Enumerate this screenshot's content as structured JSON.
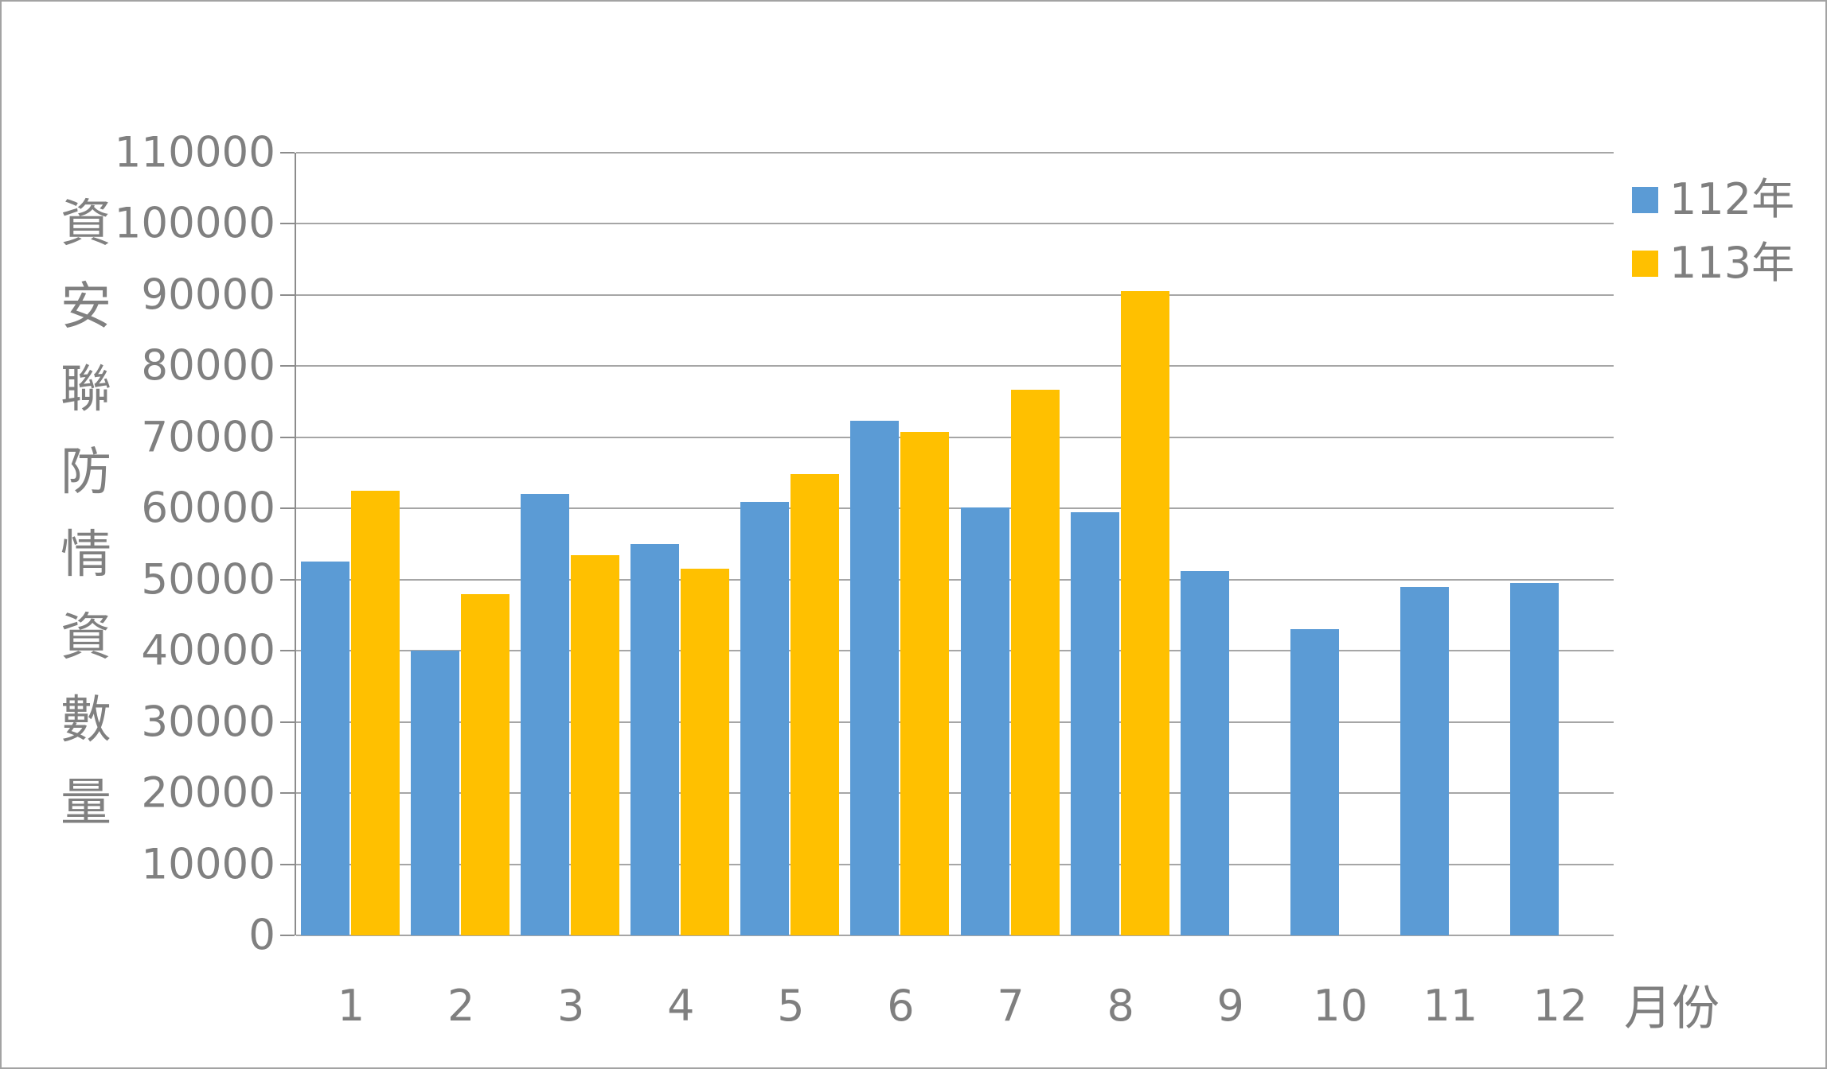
{
  "figure": {
    "background": "#ffffff",
    "border_color": "#a3a3a3"
  },
  "colors": {
    "series_112": "#5B9BD5",
    "series_113": "#FFC000",
    "gridline": "#a6a6a6",
    "axis_line": "#8c8c8c",
    "text_gray": "#808080"
  },
  "y_axis": {
    "title": "資安聯防情資數量",
    "title_chars": [
      "資",
      "安",
      "聯",
      "防",
      "情",
      "資",
      "數",
      "量"
    ],
    "tick_values": [
      0,
      10000,
      20000,
      30000,
      40000,
      50000,
      60000,
      70000,
      80000,
      90000,
      100000,
      110000
    ],
    "tick_labels": [
      "0",
      "10000",
      "20000",
      "30000",
      "40000",
      "50000",
      "60000",
      "70000",
      "80000",
      "90000",
      "100000",
      "110000"
    ]
  },
  "x_axis": {
    "title": "月份",
    "categories": [
      "1",
      "2",
      "3",
      "4",
      "5",
      "6",
      "7",
      "8",
      "9",
      "10",
      "11",
      "12"
    ]
  },
  "legend": {
    "items": [
      {
        "label": "112年",
        "color": "#5B9BD5"
      },
      {
        "label": "113年",
        "color": "#FFC000"
      }
    ]
  },
  "chart_data": {
    "type": "bar",
    "title": "",
    "xlabel": "月份",
    "ylabel": "資安聯防情資數量",
    "categories": [
      "1",
      "2",
      "3",
      "4",
      "5",
      "6",
      "7",
      "8",
      "9",
      "10",
      "11",
      "12"
    ],
    "series": [
      {
        "name": "112年",
        "color": "#5B9BD5",
        "values": [
          52500,
          40000,
          62000,
          55000,
          60900,
          72300,
          60100,
          59500,
          51200,
          43000,
          49000,
          49500
        ]
      },
      {
        "name": "113年",
        "color": "#FFC000",
        "values": [
          62500,
          48000,
          53400,
          51500,
          64800,
          70800,
          76700,
          90500,
          null,
          null,
          null,
          null
        ]
      }
    ],
    "ylim": [
      0,
      110000
    ],
    "y_step": 10000,
    "grid": true,
    "legend_position": "top-right"
  }
}
